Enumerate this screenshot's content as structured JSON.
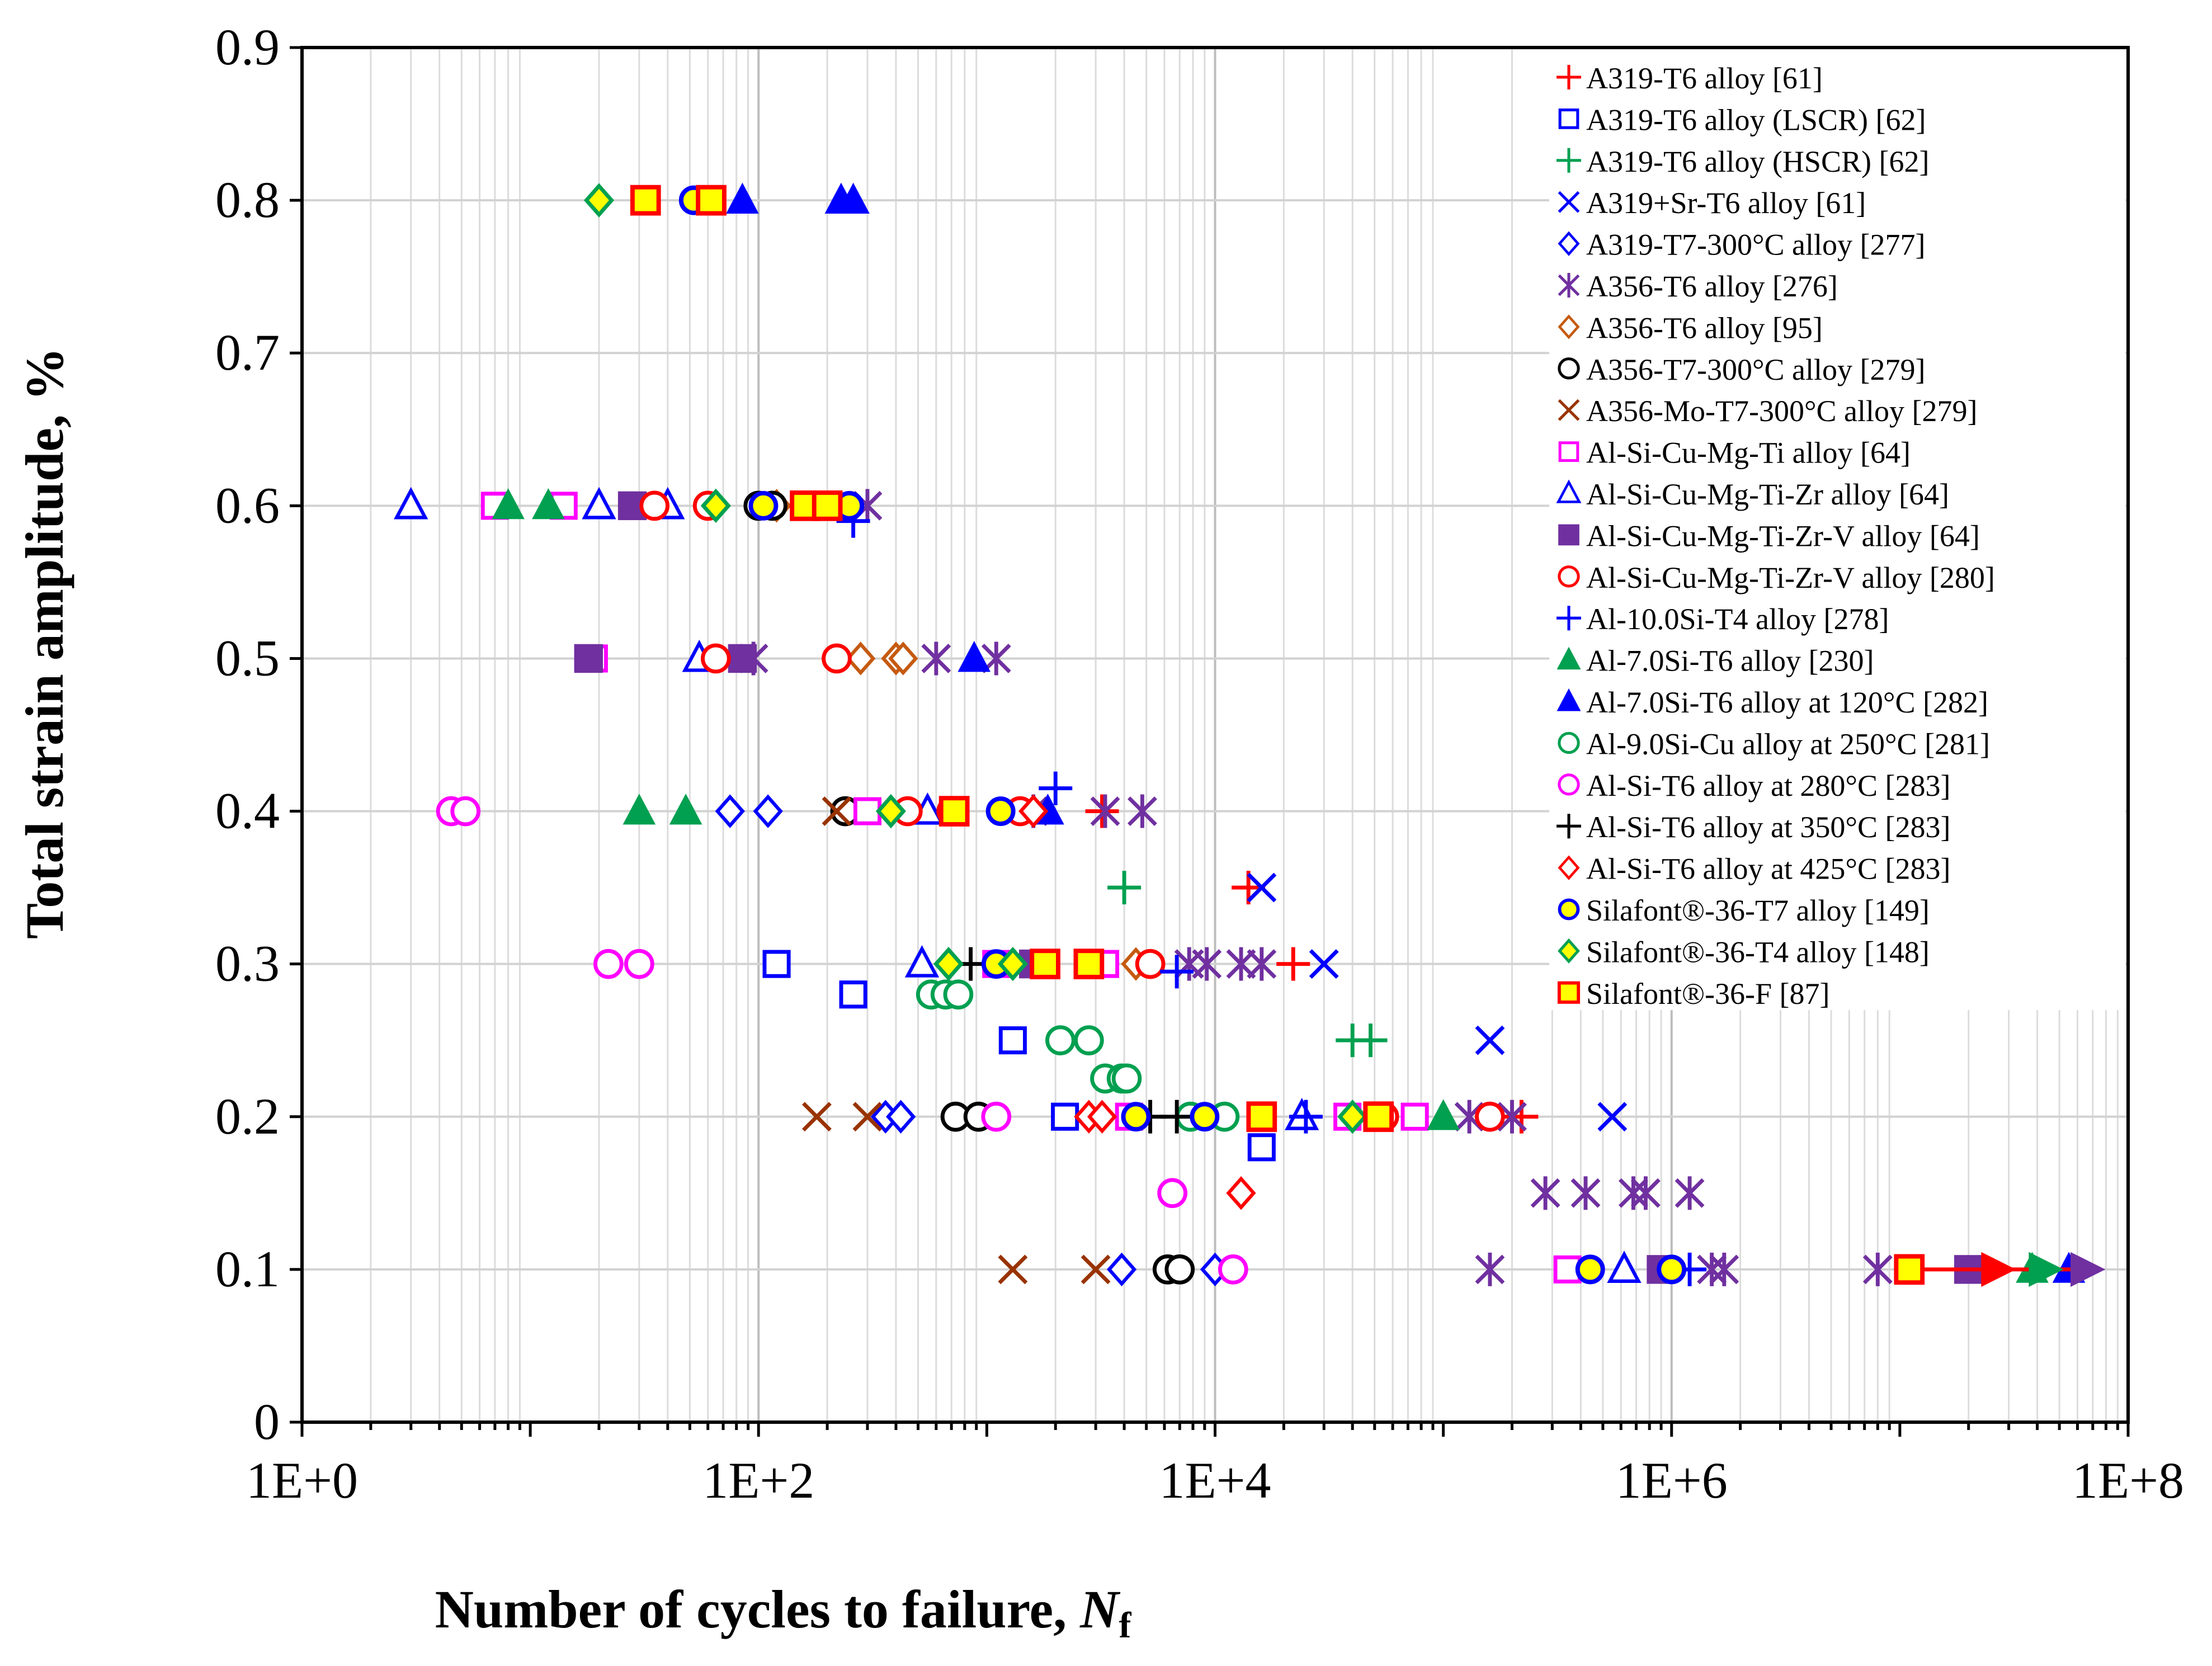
{
  "chart_data": {
    "type": "scatter",
    "title": "",
    "xlabel": "Number of cycles to failure, ",
    "xlabel_italic": "N",
    "xlabel_sub": "f",
    "ylabel": "Total strain amplitude, %",
    "xscale": "log",
    "xlim": [
      1,
      100000000
    ],
    "ylim": [
      0,
      0.9
    ],
    "x_ticks": [
      1,
      100,
      10000,
      1000000,
      100000000
    ],
    "x_tick_labels": [
      "1E+0",
      "1E+2",
      "1E+4",
      "1E+6",
      "1E+8"
    ],
    "y_ticks": [
      0,
      0.1,
      0.2,
      0.3,
      0.4,
      0.5,
      0.6,
      0.7,
      0.8,
      0.9
    ],
    "y_tick_labels": [
      "0",
      "0.1",
      "0.2",
      "0.3",
      "0.4",
      "0.5",
      "0.6",
      "0.7",
      "0.8",
      "0.9"
    ],
    "grid": true,
    "legend_position": "top-right",
    "series": [
      {
        "name": "A319-T6 alloy [61]",
        "marker": "plus",
        "color": "#ff0000",
        "points": [
          [
            3200,
            0.4
          ],
          [
            14000,
            0.35
          ],
          [
            22000,
            0.3
          ],
          [
            220000,
            0.2
          ]
        ]
      },
      {
        "name": "A319-T6 alloy (LSCR) [62]",
        "marker": "square-open",
        "color": "#0000ff",
        "points": [
          [
            120,
            0.3
          ],
          [
            260,
            0.28
          ],
          [
            1300,
            0.25
          ],
          [
            2200,
            0.2
          ],
          [
            16000,
            0.18
          ]
        ]
      },
      {
        "name": "A319-T6 alloy (HSCR) [62]",
        "marker": "plus",
        "color": "#00a050",
        "points": [
          [
            4000,
            0.35
          ],
          [
            40000,
            0.25
          ],
          [
            48000,
            0.25
          ]
        ]
      },
      {
        "name": "A319+Sr-T6 alloy [61]",
        "marker": "x",
        "color": "#0000ff",
        "points": [
          [
            16000,
            0.35
          ],
          [
            30000,
            0.3
          ],
          [
            160000,
            0.25
          ],
          [
            550000,
            0.2
          ]
        ]
      },
      {
        "name": "A319-T7-300°C alloy [277]",
        "marker": "diamond-open",
        "color": "#0000ff",
        "points": [
          [
            75,
            0.4
          ],
          [
            110,
            0.4
          ],
          [
            360,
            0.2
          ],
          [
            420,
            0.2
          ],
          [
            3900,
            0.1
          ],
          [
            10000,
            0.1
          ]
        ]
      },
      {
        "name": "A356-T6 alloy [276]",
        "marker": "asterisk",
        "color": "#7030a0",
        "points": [
          [
            300,
            0.6
          ],
          [
            95,
            0.5
          ],
          [
            600,
            0.5
          ],
          [
            1100,
            0.5
          ],
          [
            1600,
            0.4
          ],
          [
            3300,
            0.4
          ],
          [
            4800,
            0.4
          ],
          [
            7700,
            0.3
          ],
          [
            9200,
            0.3
          ],
          [
            13000,
            0.3
          ],
          [
            16000,
            0.3
          ],
          [
            130000,
            0.2
          ],
          [
            200000,
            0.2
          ],
          [
            280000,
            0.15
          ],
          [
            420000,
            0.15
          ],
          [
            680000,
            0.15
          ],
          [
            770000,
            0.15
          ],
          [
            1200000,
            0.15
          ],
          [
            160000,
            0.1
          ],
          [
            1500000,
            0.1
          ],
          [
            1700000,
            0.1
          ],
          [
            8000000,
            0.1
          ]
        ]
      },
      {
        "name": "A356-T6 alloy [95]",
        "marker": "diamond-open",
        "color": "#c55a11",
        "points": [
          [
            120,
            0.6
          ],
          [
            280,
            0.5
          ],
          [
            400,
            0.5
          ],
          [
            430,
            0.5
          ],
          [
            4500,
            0.3
          ]
        ]
      },
      {
        "name": "A356-T7-300°C alloy [279]",
        "marker": "circle-open",
        "color": "#000000",
        "points": [
          [
            100,
            0.6
          ],
          [
            115,
            0.6
          ],
          [
            240,
            0.4
          ],
          [
            730,
            0.2
          ],
          [
            920,
            0.2
          ],
          [
            6200,
            0.1
          ],
          [
            7000,
            0.1
          ]
        ]
      },
      {
        "name": "A356-Mo-T7-300°C alloy [279]",
        "marker": "x",
        "color": "#993300",
        "points": [
          [
            220,
            0.4
          ],
          [
            180,
            0.2
          ],
          [
            300,
            0.2
          ],
          [
            1300,
            0.1
          ],
          [
            3000,
            0.1
          ]
        ]
      },
      {
        "name": "Al-Si-Cu-Mg-Ti alloy [64]",
        "marker": "square-open",
        "color": "#ff00ff",
        "points": [
          [
            7,
            0.6
          ],
          [
            14,
            0.6
          ],
          [
            19,
            0.5
          ],
          [
            300,
            0.4
          ],
          [
            1100,
            0.3
          ],
          [
            3300,
            0.3
          ],
          [
            4200,
            0.2
          ],
          [
            38000,
            0.2
          ],
          [
            75000,
            0.2
          ],
          [
            350000,
            0.1
          ]
        ]
      },
      {
        "name": "Al-Si-Cu-Mg-Ti-Zr alloy [64]",
        "marker": "triangle-open",
        "color": "#0000ff",
        "points": [
          [
            3,
            0.6
          ],
          [
            20,
            0.6
          ],
          [
            40,
            0.6
          ],
          [
            55,
            0.5
          ],
          [
            550,
            0.4
          ],
          [
            520,
            0.3
          ],
          [
            24000,
            0.2
          ],
          [
            620000,
            0.1
          ]
        ]
      },
      {
        "name": "Al-Si-Cu-Mg-Ti-Zr-V alloy [64]",
        "marker": "square-filled",
        "color": "#7030a0",
        "points": [
          [
            28,
            0.6
          ],
          [
            18,
            0.5
          ],
          [
            85,
            0.5
          ],
          [
            1600,
            0.3
          ],
          [
            900000,
            0.1
          ],
          [
            20000000,
            0.1
          ]
        ]
      },
      {
        "name": "Al-Si-Cu-Mg-Ti-Zr-V alloy [280]",
        "marker": "circle-open",
        "color": "#ff0000",
        "points": [
          [
            35,
            0.6
          ],
          [
            60,
            0.6
          ],
          [
            65,
            0.5
          ],
          [
            220,
            0.5
          ],
          [
            450,
            0.4
          ],
          [
            700,
            0.4
          ],
          [
            1400,
            0.4
          ],
          [
            5200,
            0.3
          ],
          [
            55000,
            0.2
          ],
          [
            160000,
            0.2
          ]
        ]
      },
      {
        "name": "Al-10.0Si-T4 alloy [278]",
        "marker": "plus",
        "color": "#0000ff",
        "points": [
          [
            260,
            0.59
          ],
          [
            2000,
            0.415
          ],
          [
            6800,
            0.295
          ],
          [
            25000,
            0.2
          ],
          [
            1200000,
            0.1
          ]
        ]
      },
      {
        "name": "Al-7.0Si-T6 alloy [230]",
        "marker": "triangle-filled",
        "color": "#00a050",
        "points": [
          [
            8,
            0.6
          ],
          [
            12,
            0.6
          ],
          [
            30,
            0.4
          ],
          [
            48,
            0.4
          ],
          [
            100000,
            0.2
          ],
          [
            38000000,
            0.1
          ]
        ]
      },
      {
        "name": "Al-7.0Si-T6 alloy at 120°C [282]",
        "marker": "triangle-filled",
        "color": "#0000ff",
        "points": [
          [
            85,
            0.8
          ],
          [
            230,
            0.8
          ],
          [
            260,
            0.8
          ],
          [
            880,
            0.5
          ],
          [
            1850,
            0.4
          ],
          [
            55000000,
            0.1
          ]
        ]
      },
      {
        "name": "Al-9.0Si-Cu alloy at 250°C [281]",
        "marker": "circle-open",
        "color": "#00a050",
        "points": [
          [
            570,
            0.28
          ],
          [
            660,
            0.28
          ],
          [
            750,
            0.28
          ],
          [
            2100,
            0.25
          ],
          [
            2800,
            0.25
          ],
          [
            3300,
            0.225
          ],
          [
            3900,
            0.225
          ],
          [
            4100,
            0.225
          ],
          [
            7800,
            0.2
          ],
          [
            11000,
            0.2
          ]
        ]
      },
      {
        "name": "Al-Si-T6 alloy at 280°C [283]",
        "marker": "circle-open",
        "color": "#ff00ff",
        "points": [
          [
            4.5,
            0.4
          ],
          [
            5.2,
            0.4
          ],
          [
            22,
            0.3
          ],
          [
            30,
            0.3
          ],
          [
            1100,
            0.2
          ],
          [
            6500,
            0.15
          ],
          [
            12000,
            0.1
          ]
        ]
      },
      {
        "name": "Al-Si-T6 alloy at 350°C [283]",
        "marker": "plus",
        "color": "#000000",
        "points": [
          [
            850,
            0.3
          ],
          [
            5200,
            0.2
          ],
          [
            6800,
            0.2
          ]
        ]
      },
      {
        "name": "Al-Si-T6 alloy at 425°C [283]",
        "marker": "diamond-open",
        "color": "#ff0000",
        "points": [
          [
            1600,
            0.4
          ],
          [
            2800,
            0.2
          ],
          [
            3200,
            0.2
          ],
          [
            13000,
            0.15
          ]
        ]
      },
      {
        "name": "Silafont®-36-T7 alloy [149]",
        "marker": "circle-yellow",
        "color": "#0000ff",
        "points": [
          [
            52,
            0.8
          ],
          [
            105,
            0.6
          ],
          [
            250,
            0.6
          ],
          [
            1150,
            0.4
          ],
          [
            1100,
            0.3
          ],
          [
            4500,
            0.2
          ],
          [
            9000,
            0.2
          ],
          [
            440000,
            0.1
          ],
          [
            1000000,
            0.1
          ]
        ]
      },
      {
        "name": "Silafont®-36-T4 alloy [148]",
        "marker": "diamond-yellow",
        "color": "#00a050",
        "points": [
          [
            20,
            0.8
          ],
          [
            65,
            0.6
          ],
          [
            380,
            0.4
          ],
          [
            680,
            0.3
          ],
          [
            1300,
            0.3
          ],
          [
            40000,
            0.2
          ]
        ]
      },
      {
        "name": "Silafont®-36-F [87]",
        "marker": "square-yellow",
        "color": "#ff0000",
        "points": [
          [
            32,
            0.8
          ],
          [
            62,
            0.8
          ],
          [
            160,
            0.6
          ],
          [
            200,
            0.6
          ],
          [
            720,
            0.4
          ],
          [
            1800,
            0.3
          ],
          [
            2800,
            0.3
          ],
          [
            16000,
            0.2
          ],
          [
            52000,
            0.2
          ],
          [
            11000000,
            0.1
          ]
        ]
      }
    ],
    "runouts": [
      {
        "color": "#ff0000",
        "marker": "triangle-right-filled",
        "x": 26000000,
        "y": 0.1
      },
      {
        "color": "#00a050",
        "marker": "triangle-right-filled",
        "x": 42000000,
        "y": 0.1
      },
      {
        "color": "#7030a0",
        "marker": "triangle-right-filled",
        "x": 64000000,
        "y": 0.1
      }
    ]
  }
}
